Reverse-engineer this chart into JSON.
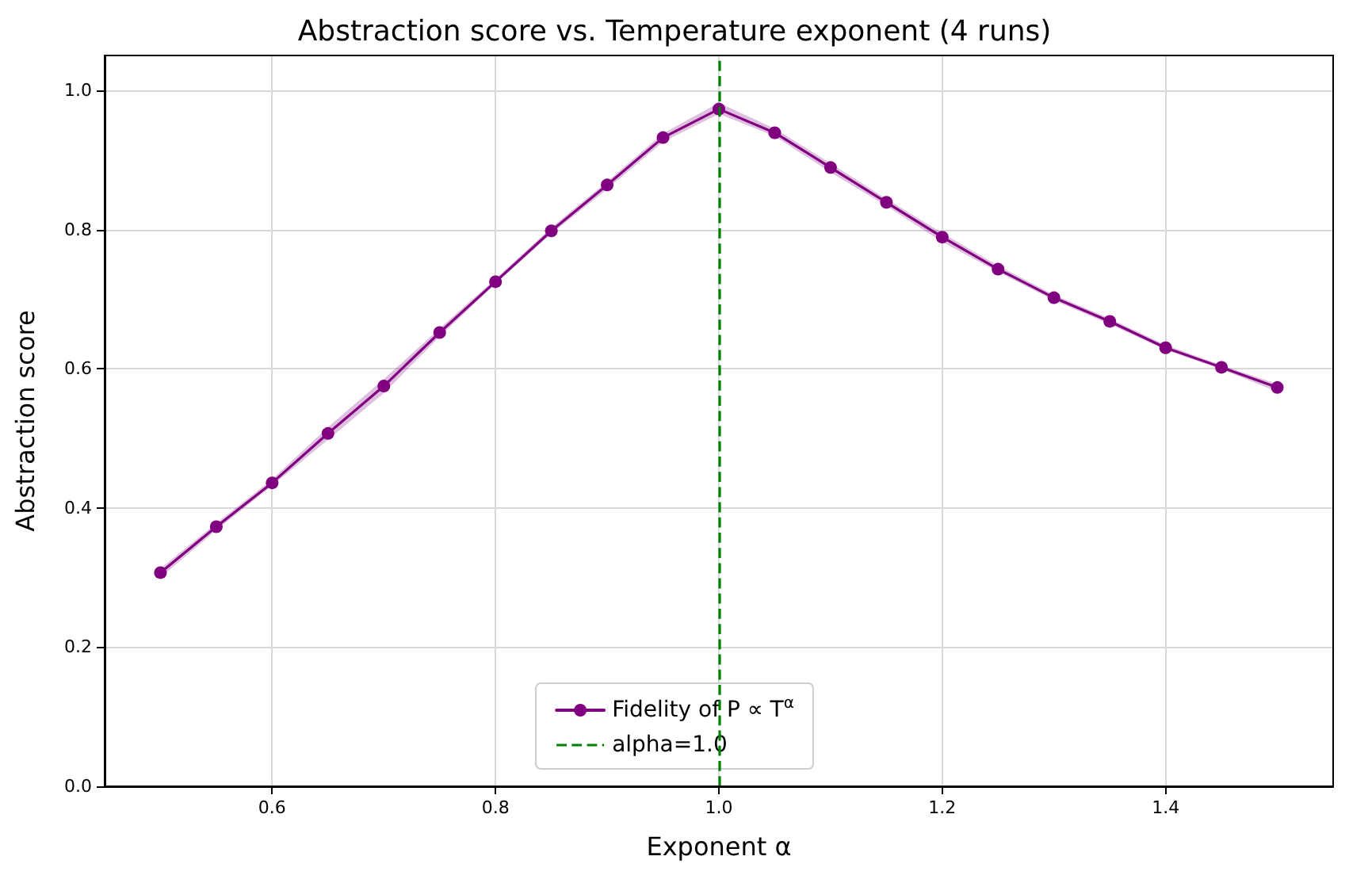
{
  "chart_data": {
    "type": "line",
    "title": "Abstraction score vs. Temperature exponent (4 runs)",
    "xlabel": "Exponent α",
    "ylabel": "Abstraction score",
    "x": [
      0.5,
      0.55,
      0.6,
      0.65,
      0.7,
      0.75,
      0.8,
      0.85,
      0.9,
      0.95,
      1.0,
      1.05,
      1.1,
      1.15,
      1.2,
      1.25,
      1.3,
      1.35,
      1.4,
      1.45,
      1.5
    ],
    "series": [
      {
        "name": "Fidelity of P ∝ T$^{α}$",
        "color": "#800080",
        "values": [
          0.307,
          0.373,
          0.436,
          0.507,
          0.575,
          0.652,
          0.725,
          0.798,
          0.864,
          0.932,
          0.973,
          0.939,
          0.889,
          0.839,
          0.789,
          0.743,
          0.702,
          0.668,
          0.63,
          0.602,
          0.573
        ],
        "lower": [
          0.3,
          0.368,
          0.432,
          0.498,
          0.565,
          0.646,
          0.722,
          0.794,
          0.858,
          0.926,
          0.966,
          0.934,
          0.882,
          0.834,
          0.782,
          0.739,
          0.698,
          0.664,
          0.627,
          0.599,
          0.567
        ],
        "upper": [
          0.313,
          0.378,
          0.441,
          0.516,
          0.585,
          0.658,
          0.729,
          0.803,
          0.869,
          0.938,
          0.982,
          0.945,
          0.895,
          0.844,
          0.795,
          0.748,
          0.706,
          0.672,
          0.634,
          0.605,
          0.578
        ]
      }
    ],
    "ref_lines": [
      {
        "axis": "x",
        "value": 1.0,
        "label": "alpha=1.0",
        "color": "#008000",
        "line_style": "dashed"
      }
    ],
    "xlim": [
      0.45,
      1.55
    ],
    "ylim": [
      0,
      1.05
    ],
    "xticks": [
      0.6,
      0.8,
      {
        "value": 1,
        "label": "1.0"
      },
      1.2,
      1.4
    ],
    "yticks": [
      {
        "value": 0,
        "label": "0.0"
      },
      0.2,
      0.4,
      0.6,
      0.8,
      {
        "value": 1,
        "label": "1.0"
      }
    ],
    "grid": true,
    "legend": "bottom",
    "marker": "circle",
    "line_style": "solid"
  }
}
